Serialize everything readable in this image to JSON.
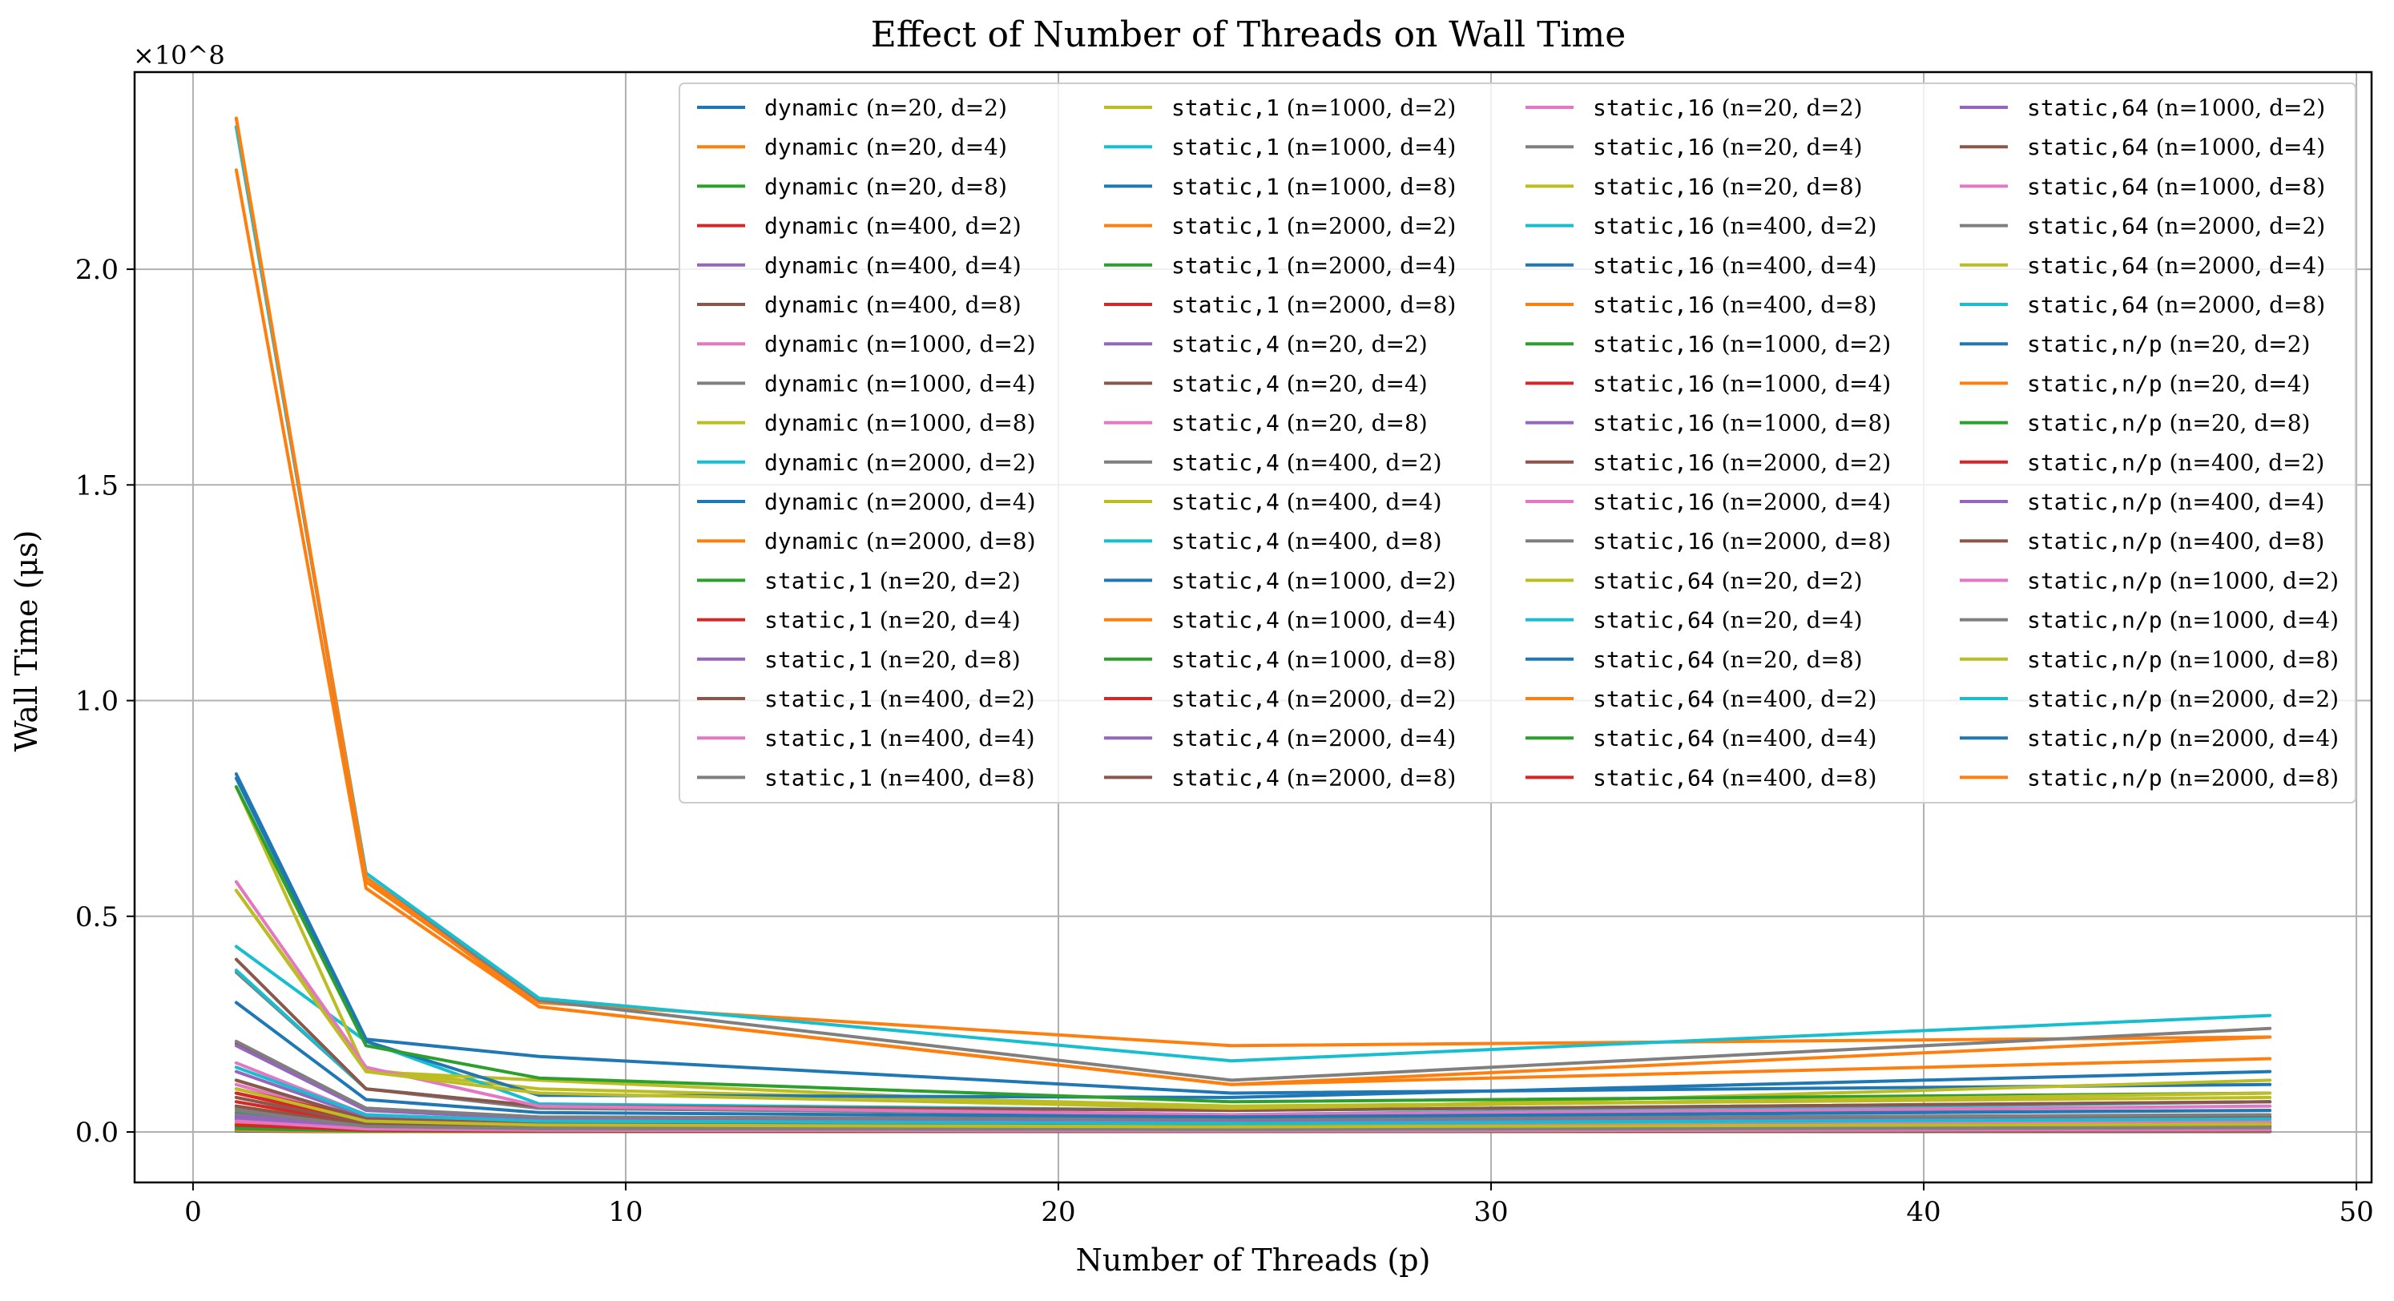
{
  "chart_data": {
    "type": "line",
    "title": "Effect of Number of Threads on Wall Time",
    "xlabel": "Number of Threads (p)",
    "ylabel": "Wall Time (μs)",
    "y_multiplier": "×10^8",
    "xlim": [
      -1.35,
      50.35
    ],
    "ylim": [
      -0.117,
      2.457
    ],
    "x_ticks": [
      0,
      10,
      20,
      30,
      40,
      50
    ],
    "x_tick_labels": [
      "0",
      "10",
      "20",
      "30",
      "40",
      "50"
    ],
    "y_ticks": [
      0.0,
      0.5,
      1.0,
      1.5,
      2.0
    ],
    "y_tick_labels": [
      "0.0",
      "0.5",
      "1.0",
      "1.5",
      "2.0"
    ],
    "grid": true,
    "legend_position": "top-right",
    "legend_columns": 4,
    "x": [
      1,
      4,
      8,
      24,
      48
    ],
    "series": [
      {
        "name": "dynamic (n=20, d=2)",
        "color": "#1f77b4",
        "values": [
          0.003,
          0.001,
          0.001,
          0.001,
          0.001
        ]
      },
      {
        "name": "dynamic (n=20, d=4)",
        "color": "#ff7f0e",
        "values": [
          0.006,
          0.002,
          0.001,
          0.001,
          0.002
        ]
      },
      {
        "name": "dynamic (n=20, d=8)",
        "color": "#2ca02c",
        "values": [
          0.011,
          0.003,
          0.002,
          0.001,
          0.002
        ]
      },
      {
        "name": "dynamic (n=400, d=2)",
        "color": "#d62728",
        "values": [
          0.022,
          0.006,
          0.003,
          0.002,
          0.003
        ]
      },
      {
        "name": "dynamic (n=400, d=4)",
        "color": "#9467bd",
        "values": [
          0.035,
          0.008,
          0.004,
          0.003,
          0.004
        ]
      },
      {
        "name": "dynamic (n=400, d=8)",
        "color": "#8c564b",
        "values": [
          0.205,
          0.055,
          0.033,
          0.03,
          0.035
        ]
      },
      {
        "name": "dynamic (n=1000, d=2)",
        "color": "#e377c2",
        "values": [
          0.11,
          0.028,
          0.015,
          0.01,
          0.012
        ]
      },
      {
        "name": "dynamic (n=1000, d=4)",
        "color": "#7f7f7f",
        "values": [
          0.37,
          0.1,
          0.055,
          0.04,
          0.05
        ]
      },
      {
        "name": "dynamic (n=1000, d=8)",
        "color": "#bcbd22",
        "values": [
          0.56,
          0.145,
          0.1,
          0.06,
          0.08
        ]
      },
      {
        "name": "dynamic (n=2000, d=2)",
        "color": "#17becf",
        "values": [
          0.43,
          0.21,
          0.065,
          0.05,
          0.07
        ]
      },
      {
        "name": "dynamic (n=2000, d=4)",
        "color": "#1f77b4",
        "values": [
          0.83,
          0.215,
          0.175,
          0.09,
          0.11
        ]
      },
      {
        "name": "dynamic (n=2000, d=8)",
        "color": "#ff7f0e",
        "values": [
          2.35,
          0.58,
          0.3,
          0.2,
          0.22
        ]
      },
      {
        "name": "static,1 (n=20, d=2)",
        "color": "#2ca02c",
        "values": [
          0.002,
          0.001,
          0.001,
          0.001,
          0.001
        ]
      },
      {
        "name": "static,1 (n=20, d=4)",
        "color": "#d62728",
        "values": [
          0.004,
          0.001,
          0.001,
          0.001,
          0.002
        ]
      },
      {
        "name": "static,1 (n=20, d=8)",
        "color": "#9467bd",
        "values": [
          0.008,
          0.002,
          0.001,
          0.001,
          0.002
        ]
      },
      {
        "name": "static,1 (n=400, d=2)",
        "color": "#8c564b",
        "values": [
          0.015,
          0.004,
          0.002,
          0.002,
          0.003
        ]
      },
      {
        "name": "static,1 (n=400, d=4)",
        "color": "#e377c2",
        "values": [
          0.03,
          0.008,
          0.004,
          0.003,
          0.005
        ]
      },
      {
        "name": "static,1 (n=400, d=8)",
        "color": "#7f7f7f",
        "values": [
          0.055,
          0.015,
          0.008,
          0.006,
          0.008
        ]
      },
      {
        "name": "static,1 (n=1000, d=2)",
        "color": "#bcbd22",
        "values": [
          0.8,
          0.14,
          0.12,
          0.05,
          0.12
        ]
      },
      {
        "name": "static,1 (n=1000, d=4)",
        "color": "#17becf",
        "values": [
          0.375,
          0.1,
          0.06,
          0.04,
          0.07
        ]
      },
      {
        "name": "static,1 (n=1000, d=8)",
        "color": "#1f77b4",
        "values": [
          0.82,
          0.21,
          0.085,
          0.08,
          0.14
        ]
      },
      {
        "name": "static,1 (n=2000, d=2)",
        "color": "#ff7f0e",
        "values": [
          2.23,
          0.565,
          0.29,
          0.11,
          0.17
        ]
      },
      {
        "name": "static,1 (n=2000, d=4)",
        "color": "#2ca02c",
        "values": [
          0.8,
          0.2,
          0.125,
          0.07,
          0.09
        ]
      },
      {
        "name": "static,1 (n=2000, d=8)",
        "color": "#d62728",
        "values": [
          0.09,
          0.025,
          0.015,
          0.01,
          0.02
        ]
      },
      {
        "name": "static,4 (n=20, d=2)",
        "color": "#9467bd",
        "values": [
          0.003,
          0.001,
          0.001,
          0.001,
          0.001
        ]
      },
      {
        "name": "static,4 (n=20, d=4)",
        "color": "#8c564b",
        "values": [
          0.005,
          0.001,
          0.001,
          0.001,
          0.002
        ]
      },
      {
        "name": "static,4 (n=20, d=8)",
        "color": "#e377c2",
        "values": [
          0.009,
          0.002,
          0.002,
          0.001,
          0.002
        ]
      },
      {
        "name": "static,4 (n=400, d=2)",
        "color": "#7f7f7f",
        "values": [
          0.018,
          0.005,
          0.003,
          0.002,
          0.003
        ]
      },
      {
        "name": "static,4 (n=400, d=4)",
        "color": "#bcbd22",
        "values": [
          0.035,
          0.009,
          0.005,
          0.004,
          0.005
        ]
      },
      {
        "name": "static,4 (n=400, d=8)",
        "color": "#17becf",
        "values": [
          0.07,
          0.02,
          0.01,
          0.008,
          0.01
        ]
      },
      {
        "name": "static,4 (n=1000, d=2)",
        "color": "#1f77b4",
        "values": [
          0.03,
          0.008,
          0.005,
          0.004,
          0.006
        ]
      },
      {
        "name": "static,4 (n=1000, d=4)",
        "color": "#ff7f0e",
        "values": [
          0.06,
          0.016,
          0.01,
          0.008,
          0.012
        ]
      },
      {
        "name": "static,4 (n=1000, d=8)",
        "color": "#2ca02c",
        "values": [
          0.12,
          0.03,
          0.02,
          0.015,
          0.02
        ]
      },
      {
        "name": "static,4 (n=2000, d=2)",
        "color": "#d62728",
        "values": [
          0.1,
          0.03,
          0.02,
          0.015,
          0.02
        ]
      },
      {
        "name": "static,4 (n=2000, d=4)",
        "color": "#9467bd",
        "values": [
          0.2,
          0.05,
          0.03,
          0.025,
          0.03
        ]
      },
      {
        "name": "static,4 (n=2000, d=8)",
        "color": "#8c564b",
        "values": [
          0.4,
          0.1,
          0.06,
          0.05,
          0.07
        ]
      },
      {
        "name": "static,16 (n=20, d=2)",
        "color": "#e377c2",
        "values": [
          0.003,
          0.001,
          0.001,
          0.001,
          0.001
        ]
      },
      {
        "name": "static,16 (n=20, d=4)",
        "color": "#7f7f7f",
        "values": [
          0.005,
          0.001,
          0.001,
          0.001,
          0.002
        ]
      },
      {
        "name": "static,16 (n=20, d=8)",
        "color": "#bcbd22",
        "values": [
          0.01,
          0.003,
          0.002,
          0.001,
          0.002
        ]
      },
      {
        "name": "static,16 (n=400, d=2)",
        "color": "#17becf",
        "values": [
          0.02,
          0.005,
          0.003,
          0.002,
          0.003
        ]
      },
      {
        "name": "static,16 (n=400, d=4)",
        "color": "#1f77b4",
        "values": [
          0.04,
          0.01,
          0.006,
          0.004,
          0.006
        ]
      },
      {
        "name": "static,16 (n=400, d=8)",
        "color": "#ff7f0e",
        "values": [
          0.08,
          0.02,
          0.012,
          0.009,
          0.012
        ]
      },
      {
        "name": "static,16 (n=1000, d=2)",
        "color": "#2ca02c",
        "values": [
          0.035,
          0.009,
          0.006,
          0.005,
          0.007
        ]
      },
      {
        "name": "static,16 (n=1000, d=4)",
        "color": "#d62728",
        "values": [
          0.07,
          0.018,
          0.011,
          0.009,
          0.013
        ]
      },
      {
        "name": "static,16 (n=1000, d=8)",
        "color": "#9467bd",
        "values": [
          0.14,
          0.035,
          0.022,
          0.017,
          0.022
        ]
      },
      {
        "name": "static,16 (n=2000, d=2)",
        "color": "#8c564b",
        "values": [
          0.12,
          0.03,
          0.02,
          0.015,
          0.022
        ]
      },
      {
        "name": "static,16 (n=2000, d=4)",
        "color": "#e377c2",
        "values": [
          0.58,
          0.15,
          0.06,
          0.04,
          0.06
        ]
      },
      {
        "name": "static,16 (n=2000, d=8)",
        "color": "#7f7f7f",
        "values": [
          2.33,
          0.59,
          0.305,
          0.12,
          0.24
        ]
      },
      {
        "name": "static,64 (n=20, d=2)",
        "color": "#bcbd22",
        "values": [
          0.003,
          0.001,
          0.001,
          0.001,
          0.001
        ]
      },
      {
        "name": "static,64 (n=20, d=4)",
        "color": "#17becf",
        "values": [
          0.006,
          0.002,
          0.001,
          0.001,
          0.002
        ]
      },
      {
        "name": "static,64 (n=20, d=8)",
        "color": "#1f77b4",
        "values": [
          0.012,
          0.003,
          0.002,
          0.001,
          0.002
        ]
      },
      {
        "name": "static,64 (n=400, d=2)",
        "color": "#ff7f0e",
        "values": [
          0.022,
          0.006,
          0.003,
          0.002,
          0.003
        ]
      },
      {
        "name": "static,64 (n=400, d=4)",
        "color": "#2ca02c",
        "values": [
          0.045,
          0.011,
          0.007,
          0.005,
          0.007
        ]
      },
      {
        "name": "static,64 (n=400, d=8)",
        "color": "#d62728",
        "values": [
          0.09,
          0.022,
          0.013,
          0.01,
          0.014
        ]
      },
      {
        "name": "static,64 (n=1000, d=2)",
        "color": "#9467bd",
        "values": [
          0.04,
          0.01,
          0.006,
          0.005,
          0.008
        ]
      },
      {
        "name": "static,64 (n=1000, d=4)",
        "color": "#8c564b",
        "values": [
          0.08,
          0.02,
          0.012,
          0.01,
          0.015
        ]
      },
      {
        "name": "static,64 (n=1000, d=8)",
        "color": "#e377c2",
        "values": [
          0.16,
          0.04,
          0.025,
          0.02,
          0.025
        ]
      },
      {
        "name": "static,64 (n=2000, d=2)",
        "color": "#7f7f7f",
        "values": [
          0.21,
          0.055,
          0.035,
          0.03,
          0.04
        ]
      },
      {
        "name": "static,64 (n=2000, d=4)",
        "color": "#bcbd22",
        "values": [
          0.56,
          0.14,
          0.09,
          0.055,
          0.09
        ]
      },
      {
        "name": "static,64 (n=2000, d=8)",
        "color": "#17becf",
        "values": [
          2.33,
          0.6,
          0.31,
          0.165,
          0.27
        ]
      },
      {
        "name": "static,n/p (n=20, d=2)",
        "color": "#1f77b4",
        "values": [
          0.002,
          0.001,
          0.001,
          0.001,
          0.001
        ]
      },
      {
        "name": "static,n/p (n=20, d=4)",
        "color": "#ff7f0e",
        "values": [
          0.004,
          0.001,
          0.001,
          0.001,
          0.002
        ]
      },
      {
        "name": "static,n/p (n=20, d=8)",
        "color": "#2ca02c",
        "values": [
          0.008,
          0.002,
          0.001,
          0.001,
          0.002
        ]
      },
      {
        "name": "static,n/p (n=400, d=2)",
        "color": "#d62728",
        "values": [
          0.016,
          0.004,
          0.002,
          0.002,
          0.003
        ]
      },
      {
        "name": "static,n/p (n=400, d=4)",
        "color": "#9467bd",
        "values": [
          0.032,
          0.008,
          0.004,
          0.003,
          0.005
        ]
      },
      {
        "name": "static,n/p (n=400, d=8)",
        "color": "#8c564b",
        "values": [
          0.06,
          0.015,
          0.008,
          0.006,
          0.009
        ]
      },
      {
        "name": "static,n/p (n=1000, d=2)",
        "color": "#e377c2",
        "values": [
          0.025,
          0.007,
          0.004,
          0.003,
          0.005
        ]
      },
      {
        "name": "static,n/p (n=1000, d=4)",
        "color": "#7f7f7f",
        "values": [
          0.05,
          0.013,
          0.008,
          0.006,
          0.01
        ]
      },
      {
        "name": "static,n/p (n=1000, d=8)",
        "color": "#bcbd22",
        "values": [
          0.1,
          0.025,
          0.016,
          0.012,
          0.018
        ]
      },
      {
        "name": "static,n/p (n=2000, d=2)",
        "color": "#17becf",
        "values": [
          0.15,
          0.04,
          0.025,
          0.02,
          0.03
        ]
      },
      {
        "name": "static,n/p (n=2000, d=4)",
        "color": "#1f77b4",
        "values": [
          0.3,
          0.075,
          0.045,
          0.035,
          0.05
        ]
      },
      {
        "name": "static,n/p (n=2000, d=8)",
        "color": "#ff7f0e",
        "values": [
          2.35,
          0.59,
          0.29,
          0.11,
          0.22
        ]
      }
    ]
  }
}
